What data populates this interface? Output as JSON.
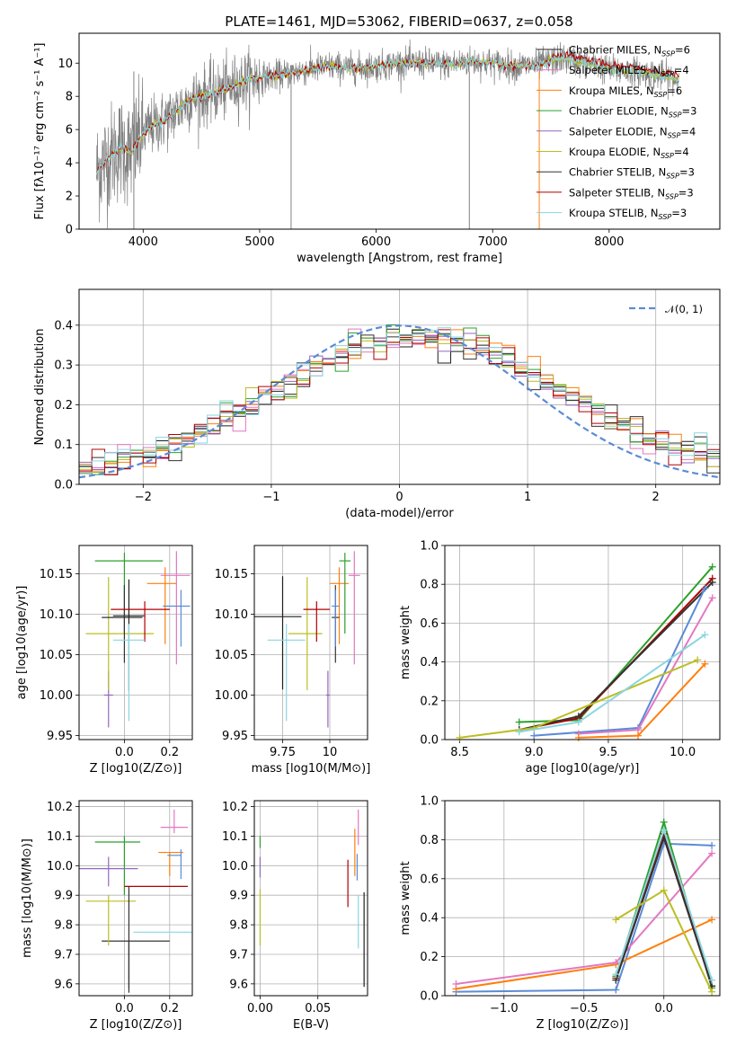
{
  "figure_title": "PLATE=1461, MJD=53062, FIBERID=0637, z=0.058",
  "colors": {
    "chabrier_miles": "#1f1f1f",
    "salpeter_miles": "#e377c2",
    "kroupa_miles": "#ff7f0e",
    "chabrier_elodie": "#2ca02c",
    "salpeter_elodie": "#9467bd",
    "kroupa_elodie": "#bcbd22",
    "chabrier_stelib": "#333333",
    "salpeter_stelib": "#b00000",
    "kroupa_stelib": "#8ad6e0",
    "data": "#808080",
    "normal": "#5b8bd6",
    "grid": "#b0b0b0"
  },
  "chart_data": [
    {
      "type": "line",
      "id": "spectrum",
      "xlabel": "wavelength [Angstrom, rest frame]",
      "ylabel": "Flux [fλ10⁻¹⁷ erg cm⁻² s⁻¹ A⁻¹]",
      "xlim": [
        3450,
        8950
      ],
      "ylim": [
        0,
        11.8
      ],
      "xticks": [
        4000,
        5000,
        6000,
        7000,
        8000
      ],
      "yticks": [
        0,
        2,
        4,
        6,
        8,
        10
      ],
      "grid": false,
      "legend_position": "upper-right",
      "model_envelope": {
        "x": [
          3600,
          3700,
          3800,
          3900,
          4000,
          4100,
          4200,
          4300,
          4400,
          4500,
          4600,
          4700,
          4800,
          4900,
          5000,
          5200,
          5400,
          5600,
          5800,
          6000,
          6200,
          6400,
          6600,
          6800,
          7000,
          7200,
          7400,
          7600,
          7800,
          8000,
          8200,
          8400,
          8600
        ],
        "y": [
          3.5,
          4.3,
          4.9,
          4.6,
          5.8,
          6.3,
          6.6,
          7.2,
          7.8,
          8.0,
          8.2,
          8.4,
          8.7,
          9.0,
          9.1,
          9.3,
          9.6,
          9.8,
          9.7,
          9.8,
          10.0,
          10.0,
          9.9,
          10.1,
          10.0,
          9.8,
          9.9,
          10.3,
          10.0,
          9.6,
          9.5,
          9.3,
          9.0
        ]
      },
      "series": [
        {
          "name": "Chabrier MILES, N_SSP=6",
          "color_key": "chabrier_miles"
        },
        {
          "name": "Salpeter MILES, N_SSP=4",
          "color_key": "salpeter_miles"
        },
        {
          "name": "Kroupa MILES, N_SSP=6",
          "color_key": "kroupa_miles"
        },
        {
          "name": "Chabrier ELODIE, N_SSP=3",
          "color_key": "chabrier_elodie"
        },
        {
          "name": "Salpeter ELODIE, N_SSP=4",
          "color_key": "salpeter_elodie"
        },
        {
          "name": "Kroupa ELODIE, N_SSP=4",
          "color_key": "kroupa_elodie"
        },
        {
          "name": "Chabrier STELIB, N_SSP=3",
          "color_key": "chabrier_stelib"
        },
        {
          "name": "Salpeter STELIB, N_SSP=3",
          "color_key": "salpeter_stelib"
        },
        {
          "name": "Kroupa STELIB, N_SSP=3",
          "color_key": "kroupa_stelib"
        }
      ]
    },
    {
      "type": "line",
      "id": "residuals",
      "xlabel": "(data-model)/error",
      "ylabel": "Normed distribution",
      "xlim": [
        -2.5,
        2.5
      ],
      "ylim": [
        0,
        0.49
      ],
      "xticks": [
        -2,
        -1,
        0,
        1,
        2
      ],
      "yticks": [
        0.0,
        0.1,
        0.2,
        0.3,
        0.4
      ],
      "grid": true,
      "legend_position": "upper-right",
      "legend_label": "𝒩(0, 1)",
      "bin_width": 0.1
    },
    {
      "type": "scatter",
      "id": "age_vs_Z",
      "xlabel": "Z [log10(Z/Z⊙)]",
      "ylabel": "age [log10(age/yr)]",
      "xlim": [
        -0.2,
        0.3
      ],
      "ylim": [
        9.945,
        10.185
      ],
      "xticks": [
        0.0,
        0.2
      ],
      "yticks": [
        9.95,
        10.0,
        10.05,
        10.1,
        10.15
      ],
      "grid": true,
      "points": [
        {
          "k": "chabrier_miles",
          "x": 0.02,
          "y": 10.098,
          "xe": [
            0.07,
            0.07
          ],
          "ye": [
            0.093,
            0.045
          ]
        },
        {
          "k": "salpeter_miles",
          "x": 0.23,
          "y": 10.148,
          "xe": [
            0.07,
            0.06
          ],
          "ye": [
            0.11,
            0.03
          ]
        },
        {
          "k": "kroupa_miles",
          "x": 0.18,
          "y": 10.138,
          "xe": [
            0.08,
            0.05
          ],
          "ye": [
            0.075,
            0.02
          ]
        },
        {
          "k": "chabrier_elodie",
          "x": 0.0,
          "y": 10.166,
          "xe": [
            0.13,
            0.17
          ],
          "ye": [
            0.09,
            0.01
          ]
        },
        {
          "k": "salpeter_elodie",
          "x": -0.07,
          "y": 10.0,
          "xe": [
            0.02,
            0.02
          ],
          "ye": [
            0.04,
            0.03
          ]
        },
        {
          "k": "kroupa_elodie",
          "x": -0.07,
          "y": 10.076,
          "xe": [
            0.1,
            0.2
          ],
          "ye": [
            0.07,
            0.07
          ]
        },
        {
          "k": "chabrier_stelib",
          "x": 0.0,
          "y": 10.096,
          "xe": [
            0.1,
            0.08
          ],
          "ye": [
            0.056,
            0.04
          ]
        },
        {
          "k": "salpeter_stelib",
          "x": 0.09,
          "y": 10.106,
          "xe": [
            0.15,
            0.11
          ],
          "ye": [
            0.04,
            0.01
          ]
        },
        {
          "k": "kroupa_stelib",
          "x": 0.02,
          "y": 10.068,
          "xe": [
            0.07,
            0.07
          ],
          "ye": [
            0.1,
            0.02
          ]
        },
        {
          "k": "normal",
          "x": 0.25,
          "y": 10.11,
          "xe": [
            0.08,
            0.04
          ],
          "ye": [
            0.05,
            0.02
          ]
        }
      ]
    },
    {
      "type": "scatter",
      "id": "age_vs_mass",
      "xlabel": "mass [log10(M/M⊙)]",
      "ylabel": "",
      "xlim": [
        9.6,
        10.2
      ],
      "ylim": [
        9.945,
        10.185
      ],
      "xticks": [
        9.75,
        10.0
      ],
      "yticks": [
        9.95,
        10.0,
        10.05,
        10.1,
        10.15
      ],
      "grid": true,
      "points": [
        {
          "k": "chabrier_miles",
          "x": 9.75,
          "y": 10.097,
          "xe": [
            0.15,
            0.1
          ],
          "ye": [
            0.09,
            0.05
          ]
        },
        {
          "k": "salpeter_miles",
          "x": 10.13,
          "y": 10.148,
          "xe": [
            0.03,
            0.03
          ],
          "ye": [
            0.11,
            0.03
          ]
        },
        {
          "k": "kroupa_miles",
          "x": 10.05,
          "y": 10.138,
          "xe": [
            0.05,
            0.05
          ],
          "ye": [
            0.075,
            0.02
          ]
        },
        {
          "k": "chabrier_elodie",
          "x": 10.08,
          "y": 10.166,
          "xe": [
            0.03,
            0.03
          ],
          "ye": [
            0.09,
            0.01
          ]
        },
        {
          "k": "salpeter_elodie",
          "x": 9.99,
          "y": 10.0,
          "xe": [
            0.01,
            0.01
          ],
          "ye": [
            0.04,
            0.03
          ]
        },
        {
          "k": "kroupa_elodie",
          "x": 9.88,
          "y": 10.076,
          "xe": [
            0.1,
            0.08
          ],
          "ye": [
            0.07,
            0.07
          ]
        },
        {
          "k": "chabrier_stelib",
          "x": 10.03,
          "y": 10.096,
          "xe": [
            0.02,
            0.02
          ],
          "ye": [
            0.056,
            0.04
          ]
        },
        {
          "k": "salpeter_stelib",
          "x": 9.93,
          "y": 10.106,
          "xe": [
            0.07,
            0.07
          ],
          "ye": [
            0.04,
            0.01
          ]
        },
        {
          "k": "kroupa_stelib",
          "x": 9.77,
          "y": 10.068,
          "xe": [
            0.1,
            0.1
          ],
          "ye": [
            0.1,
            0.02
          ]
        },
        {
          "k": "normal",
          "x": 10.03,
          "y": 10.11,
          "xe": [
            0.02,
            0.02
          ],
          "ye": [
            0.05,
            0.02
          ]
        }
      ]
    },
    {
      "type": "line",
      "id": "massweight_vs_age",
      "xlabel": "age [log10(age/yr)]",
      "ylabel": "mass weight",
      "xlim": [
        8.4,
        10.25
      ],
      "ylim": [
        0,
        1.0
      ],
      "xticks": [
        8.5,
        9.0,
        9.5,
        10.0
      ],
      "yticks": [
        0.0,
        0.2,
        0.4,
        0.6,
        0.8,
        1.0
      ],
      "grid": true,
      "series": [
        {
          "k": "chabrier_elodie",
          "x": [
            8.9,
            9.3,
            10.2
          ],
          "y": [
            0.09,
            0.1,
            0.89
          ]
        },
        {
          "k": "salpeter_stelib",
          "x": [
            8.9,
            9.3,
            10.2
          ],
          "y": [
            0.05,
            0.11,
            0.83
          ]
        },
        {
          "k": "chabrier_stelib",
          "x": [
            8.9,
            9.3,
            10.2
          ],
          "y": [
            0.05,
            0.12,
            0.81
          ]
        },
        {
          "k": "normal",
          "x": [
            9.0,
            9.7,
            10.15
          ],
          "y": [
            0.02,
            0.06,
            0.78
          ]
        },
        {
          "k": "salpeter_miles",
          "x": [
            9.3,
            9.7,
            10.2
          ],
          "y": [
            0.03,
            0.05,
            0.73
          ]
        },
        {
          "k": "kroupa_elodie",
          "x": [
            8.5,
            9.0,
            10.1
          ],
          "y": [
            0.01,
            0.06,
            0.41
          ]
        },
        {
          "k": "kroupa_stelib",
          "x": [
            8.9,
            9.3,
            10.15
          ],
          "y": [
            0.04,
            0.09,
            0.54
          ]
        },
        {
          "k": "kroupa_miles",
          "x": [
            9.3,
            9.7,
            10.15
          ],
          "y": [
            0.01,
            0.02,
            0.39
          ]
        }
      ]
    },
    {
      "type": "scatter",
      "id": "mass_vs_Z",
      "xlabel": "Z [log10(Z/Z⊙)]",
      "ylabel": "mass [log10(M/M⊙)]",
      "xlim": [
        -0.2,
        0.3
      ],
      "ylim": [
        9.56,
        10.22
      ],
      "xticks": [
        0.0,
        0.2
      ],
      "yticks": [
        9.6,
        9.7,
        9.8,
        9.9,
        10.0,
        10.1,
        10.2
      ],
      "grid": true,
      "points": [
        {
          "k": "chabrier_miles",
          "x": 0.02,
          "y": 9.745,
          "xe": [
            0.12,
            0.18
          ],
          "ye": [
            0.16,
            0.0
          ]
        },
        {
          "k": "salpeter_miles",
          "x": 0.22,
          "y": 10.13,
          "xe": [
            0.06,
            0.06
          ],
          "ye": [
            0.02,
            0.06
          ]
        },
        {
          "k": "kroupa_miles",
          "x": 0.2,
          "y": 10.045,
          "xe": [
            0.05,
            0.06
          ],
          "ye": [
            0.08,
            0.0
          ]
        },
        {
          "k": "chabrier_elodie",
          "x": 0.0,
          "y": 10.08,
          "xe": [
            0.13,
            0.07
          ],
          "ye": [
            0.18,
            0.02
          ]
        },
        {
          "k": "salpeter_elodie",
          "x": -0.07,
          "y": 9.99,
          "xe": [
            0.13,
            0.13
          ],
          "ye": [
            0.06,
            0.04
          ]
        },
        {
          "k": "kroupa_elodie",
          "x": -0.07,
          "y": 9.88,
          "xe": [
            0.1,
            0.12
          ],
          "ye": [
            0.15,
            0.02
          ]
        },
        {
          "k": "chabrier_stelib",
          "x": 0.02,
          "y": 9.93,
          "xe": [
            0.0,
            0.0
          ],
          "ye": [
            0.36,
            0.0
          ]
        },
        {
          "k": "salpeter_stelib",
          "x": 0.1,
          "y": 9.93,
          "xe": [
            0.1,
            0.18
          ],
          "ye": [
            0.0,
            0.0
          ]
        },
        {
          "k": "kroupa_stelib",
          "x": 0.17,
          "y": 9.775,
          "xe": [
            0.13,
            0.13
          ],
          "ye": [
            0.0,
            0.0
          ]
        },
        {
          "k": "normal",
          "x": 0.25,
          "y": 10.035,
          "xe": [
            0.06,
            0.0
          ],
          "ye": [
            0.08,
            0.02
          ]
        }
      ]
    },
    {
      "type": "scatter",
      "id": "mass_vs_ebv",
      "xlabel": "E(B-V)",
      "ylabel": "",
      "xlim": [
        -0.005,
        0.093
      ],
      "ylim": [
        9.56,
        10.22
      ],
      "xticks": [
        0.0,
        0.05
      ],
      "yticks": [
        9.6,
        9.7,
        9.8,
        9.9,
        10.0,
        10.1,
        10.2
      ],
      "grid": true,
      "points": [
        {
          "k": "salpeter_elodie",
          "x": 0.0,
          "y": 9.99,
          "xe": [
            0,
            0
          ],
          "ye": [
            0.03,
            0.04
          ]
        },
        {
          "k": "kroupa_elodie",
          "x": 0.0,
          "y": 9.85,
          "xe": [
            0,
            0
          ],
          "ye": [
            0.12,
            0.07
          ]
        },
        {
          "k": "chabrier_elodie",
          "x": 0.0,
          "y": 10.08,
          "xe": [
            0,
            0
          ],
          "ye": [
            0.02,
            0.02
          ]
        },
        {
          "k": "salpeter_stelib",
          "x": 0.076,
          "y": 9.93,
          "xe": [
            0,
            0
          ],
          "ye": [
            0.07,
            0.09
          ]
        },
        {
          "k": "kroupa_miles",
          "x": 0.082,
          "y": 10.045,
          "xe": [
            0,
            0
          ],
          "ye": [
            0.08,
            0.08
          ]
        },
        {
          "k": "salpeter_miles",
          "x": 0.085,
          "y": 10.13,
          "xe": [
            0,
            0
          ],
          "ye": [
            0.06,
            0.06
          ]
        },
        {
          "k": "normal",
          "x": 0.084,
          "y": 10.0,
          "xe": [
            0,
            0
          ],
          "ye": [
            0.05,
            0.04
          ]
        },
        {
          "k": "kroupa_stelib",
          "x": 0.085,
          "y": 9.8,
          "xe": [
            0,
            0
          ],
          "ye": [
            0.08,
            0.1
          ]
        },
        {
          "k": "chabrier_miles",
          "x": 0.09,
          "y": 9.75,
          "xe": [
            0,
            0
          ],
          "ye": [
            0.16,
            0.16
          ]
        }
      ]
    },
    {
      "type": "line",
      "id": "massweight_vs_Z",
      "xlabel": "Z [log10(Z/Z⊙)]",
      "ylabel": "mass weight",
      "xlim": [
        -1.37,
        0.35
      ],
      "ylim": [
        0,
        1.0
      ],
      "xticks": [
        -1.0,
        -0.5,
        0.0
      ],
      "yticks": [
        0.0,
        0.2,
        0.4,
        0.6,
        0.8,
        1.0
      ],
      "grid": true,
      "series": [
        {
          "k": "normal",
          "x": [
            -1.3,
            -0.3,
            0.0,
            0.3
          ],
          "y": [
            0.02,
            0.03,
            0.78,
            0.77
          ]
        },
        {
          "k": "kroupa_miles",
          "x": [
            -1.3,
            -0.3,
            0.3
          ],
          "y": [
            0.035,
            0.16,
            0.39
          ]
        },
        {
          "k": "salpeter_miles",
          "x": [
            -1.3,
            -0.3,
            0.3
          ],
          "y": [
            0.06,
            0.17,
            0.73
          ]
        },
        {
          "k": "chabrier_elodie",
          "x": [
            -0.3,
            0.0,
            0.3
          ],
          "y": [
            0.1,
            0.89,
            0.04
          ]
        },
        {
          "k": "salpeter_stelib",
          "x": [
            -0.3,
            0.0,
            0.3
          ],
          "y": [
            0.09,
            0.83,
            0.05
          ]
        },
        {
          "k": "chabrier_stelib",
          "x": [
            -0.3,
            0.0,
            0.3
          ],
          "y": [
            0.08,
            0.81,
            0.05
          ]
        },
        {
          "k": "kroupa_stelib",
          "x": [
            -0.3,
            0.0,
            0.3
          ],
          "y": [
            0.11,
            0.85,
            0.08
          ]
        },
        {
          "k": "kroupa_elodie",
          "x": [
            -0.3,
            0.0,
            0.3
          ],
          "y": [
            0.39,
            0.54,
            0.02
          ]
        }
      ]
    }
  ]
}
